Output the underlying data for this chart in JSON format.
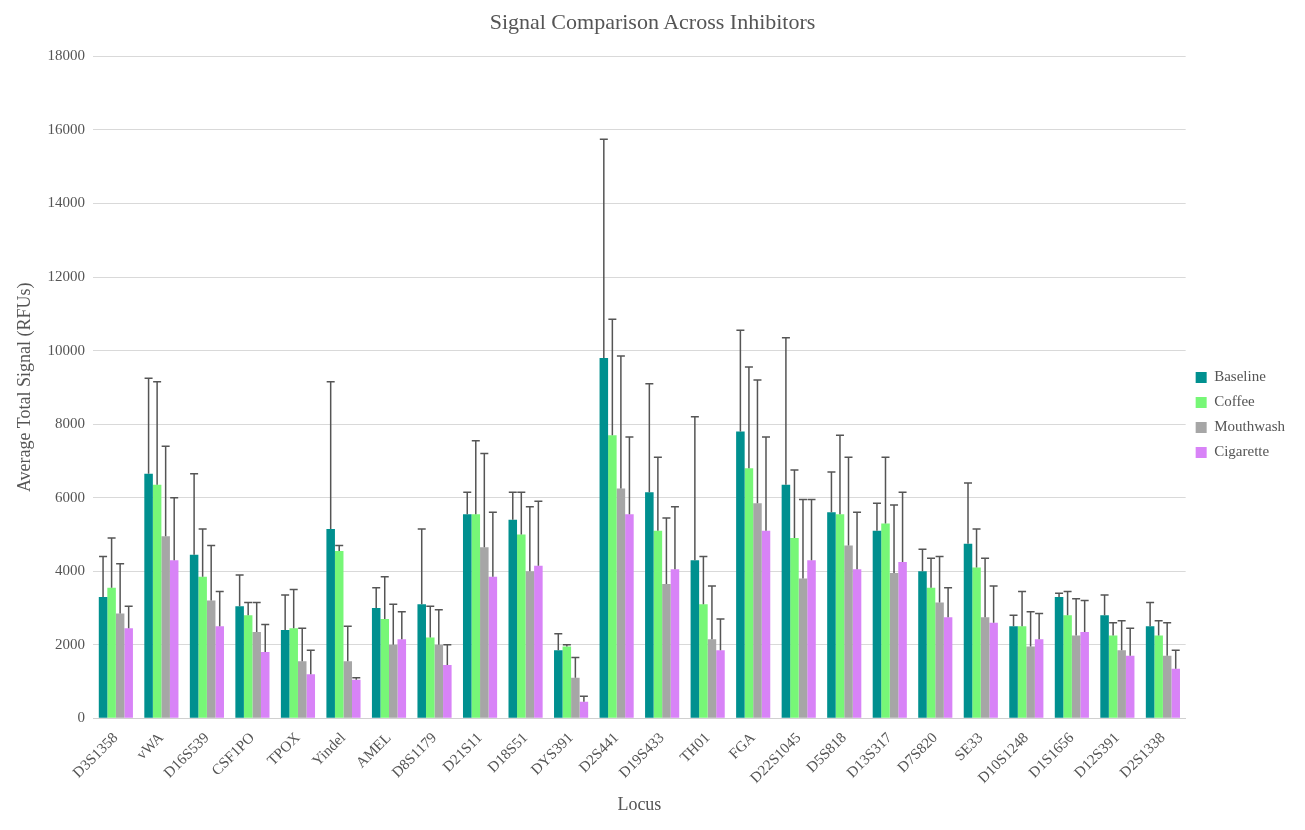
{
  "chart_data": {
    "type": "bar",
    "title": "Signal Comparison Across Inhibitors",
    "xlabel": "Locus",
    "ylabel": "Average Total Signal (RFUs)",
    "categories": [
      "D3S1358",
      "vWA",
      "D16S539",
      "CSF1PO",
      "TPOX",
      "Yindel",
      "AMEL",
      "D8S1179",
      "D21S11",
      "D18S51",
      "DYS391",
      "D2S441",
      "D19S433",
      "TH01",
      "FGA",
      "D22S1045",
      "D5S818",
      "D13S317",
      "D7S820",
      "SE33",
      "D10S1248",
      "D1S1656",
      "D12S391",
      "D2S1338"
    ],
    "series": [
      {
        "name": "Baseline",
        "color": "#00908f",
        "values": [
          3300,
          6650,
          4450,
          3050,
          2400,
          5150,
          3000,
          3100,
          5550,
          5400,
          1850,
          9800,
          6150,
          4300,
          7800,
          6350,
          5600,
          5100,
          4000,
          4750,
          2500,
          3300,
          2800,
          2500
        ],
        "errors": [
          [
            3300,
            4400
          ],
          [
            6650,
            9250
          ],
          [
            4450,
            6650
          ],
          [
            3050,
            3900
          ],
          [
            2400,
            3350
          ],
          [
            5150,
            9150
          ],
          [
            3000,
            3550
          ],
          [
            3100,
            5150
          ],
          [
            5550,
            6150
          ],
          [
            5400,
            6150
          ],
          [
            1850,
            2300
          ],
          [
            9800,
            15750
          ],
          [
            6150,
            9100
          ],
          [
            4300,
            8200
          ],
          [
            7800,
            10550
          ],
          [
            6350,
            10350
          ],
          [
            5600,
            6700
          ],
          [
            5100,
            5850
          ],
          [
            4000,
            4600
          ],
          [
            4750,
            6400
          ],
          [
            2500,
            2800
          ],
          [
            3300,
            3400
          ],
          [
            2800,
            3350
          ],
          [
            2500,
            3150
          ]
        ]
      },
      {
        "name": "Coffee",
        "color": "#77f777",
        "values": [
          3550,
          6350,
          3850,
          2800,
          2450,
          4550,
          2700,
          2200,
          5550,
          5000,
          1950,
          7700,
          5100,
          3100,
          6800,
          4900,
          5550,
          5300,
          3550,
          4100,
          2500,
          2800,
          2250,
          2250
        ],
        "errors": [
          [
            3550,
            4900
          ],
          [
            6350,
            9150
          ],
          [
            3850,
            5150
          ],
          [
            2800,
            3150
          ],
          [
            2450,
            3500
          ],
          [
            4550,
            4700
          ],
          [
            2700,
            3850
          ],
          [
            2200,
            3050
          ],
          [
            5550,
            7550
          ],
          [
            5000,
            6150
          ],
          [
            1950,
            2000
          ],
          [
            7700,
            10850
          ],
          [
            5100,
            7100
          ],
          [
            3100,
            4400
          ],
          [
            6800,
            9550
          ],
          [
            4900,
            6750
          ],
          [
            5550,
            7700
          ],
          [
            5300,
            7100
          ],
          [
            3550,
            4350
          ],
          [
            4100,
            5150
          ],
          [
            2500,
            3450
          ],
          [
            2800,
            3450
          ],
          [
            2250,
            2600
          ],
          [
            2250,
            2650
          ]
        ]
      },
      {
        "name": "Mouthwash",
        "color": "#a6a6a6",
        "values": [
          2850,
          4950,
          3200,
          2350,
          1550,
          1550,
          2000,
          2000,
          4650,
          4000,
          1100,
          6250,
          3650,
          2150,
          5850,
          3800,
          4700,
          3950,
          3150,
          2750,
          1950,
          2250,
          1850,
          1700
        ],
        "errors": [
          [
            2850,
            4200
          ],
          [
            4950,
            7400
          ],
          [
            3200,
            4700
          ],
          [
            2350,
            3150
          ],
          [
            1550,
            2450
          ],
          [
            1550,
            2500
          ],
          [
            2000,
            3100
          ],
          [
            2000,
            2950
          ],
          [
            4650,
            7200
          ],
          [
            4000,
            5750
          ],
          [
            1100,
            1650
          ],
          [
            6250,
            9850
          ],
          [
            3650,
            5450
          ],
          [
            2150,
            3600
          ],
          [
            5850,
            9200
          ],
          [
            3800,
            5950
          ],
          [
            4700,
            7100
          ],
          [
            3950,
            5800
          ],
          [
            3150,
            4400
          ],
          [
            2750,
            4350
          ],
          [
            1950,
            2900
          ],
          [
            2250,
            3250
          ],
          [
            1850,
            2650
          ],
          [
            1700,
            2600
          ]
        ]
      },
      {
        "name": "Cigarette",
        "color": "#d883f7",
        "values": [
          2450,
          4300,
          2500,
          1800,
          1200,
          1050,
          2150,
          1450,
          3850,
          4150,
          450,
          5550,
          4050,
          1850,
          5100,
          4300,
          4050,
          4250,
          2750,
          2600,
          2150,
          2350,
          1700,
          1350
        ],
        "errors": [
          [
            2450,
            3050
          ],
          [
            4300,
            6000
          ],
          [
            2500,
            3450
          ],
          [
            1800,
            2550
          ],
          [
            1200,
            1850
          ],
          [
            1050,
            1100
          ],
          [
            2150,
            2900
          ],
          [
            1450,
            2000
          ],
          [
            3850,
            5600
          ],
          [
            4150,
            5900
          ],
          [
            450,
            600
          ],
          [
            5550,
            7650
          ],
          [
            4050,
            5750
          ],
          [
            1850,
            2700
          ],
          [
            5100,
            7650
          ],
          [
            4300,
            5950
          ],
          [
            4050,
            5600
          ],
          [
            4250,
            6150
          ],
          [
            2750,
            3550
          ],
          [
            2600,
            3600
          ],
          [
            2150,
            2850
          ],
          [
            2350,
            3200
          ],
          [
            1700,
            2450
          ],
          [
            1350,
            1850
          ]
        ]
      }
    ],
    "ylim": [
      0,
      18000
    ],
    "yticks": [
      0,
      2000,
      4000,
      6000,
      8000,
      10000,
      12000,
      14000,
      16000,
      18000
    ],
    "grid": "y",
    "legend": "right"
  }
}
